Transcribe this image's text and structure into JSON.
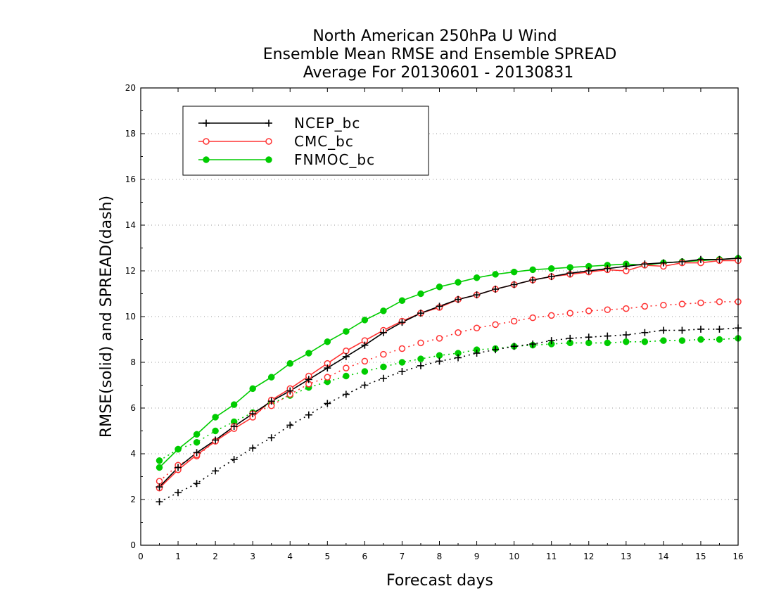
{
  "chart_data": {
    "type": "line",
    "title": [
      "North American 250hPa U Wind",
      "Ensemble Mean RMSE and Ensemble SPREAD",
      "Average For 20130601 - 20130831"
    ],
    "xlabel": "Forecast days",
    "ylabel": "RMSE(solid) and SPREAD(dash)",
    "xlim": [
      0,
      16
    ],
    "ylim": [
      0,
      20
    ],
    "x_ticks": [
      "0",
      "1",
      "2",
      "3",
      "4",
      "5",
      "6",
      "7",
      "8",
      "9",
      "10",
      "11",
      "12",
      "13",
      "14",
      "15",
      "16"
    ],
    "y_ticks": [
      "0",
      "2",
      "4",
      "6",
      "8",
      "10",
      "12",
      "14",
      "16",
      "18",
      "20"
    ],
    "grid": "horizontal dotted",
    "legend_position": "top-left",
    "x": [
      0.5,
      1,
      1.5,
      2,
      2.5,
      3,
      3.5,
      4,
      4.5,
      5,
      5.5,
      6,
      6.5,
      7,
      7.5,
      8,
      8.5,
      9,
      9.5,
      10,
      10.5,
      11,
      11.5,
      12,
      12.5,
      13,
      13.5,
      14,
      14.5,
      15,
      15.5,
      16
    ],
    "series": [
      {
        "name": "NCEP_bc",
        "color": "#000000",
        "marker": "plus",
        "style": "solid",
        "values": [
          2.55,
          3.4,
          4.05,
          4.6,
          5.2,
          5.75,
          6.3,
          6.75,
          7.25,
          7.75,
          8.25,
          8.75,
          9.3,
          9.75,
          10.15,
          10.45,
          10.75,
          10.95,
          11.2,
          11.4,
          11.6,
          11.75,
          11.9,
          12.0,
          12.1,
          12.2,
          12.3,
          12.35,
          12.4,
          12.5,
          12.5,
          12.55
        ]
      },
      {
        "name": "CMC_bc",
        "color": "#ff3333",
        "marker": "open-circle",
        "style": "solid",
        "values": [
          2.5,
          3.3,
          3.95,
          4.55,
          5.1,
          5.6,
          6.35,
          6.85,
          7.4,
          7.95,
          8.5,
          8.95,
          9.4,
          9.8,
          10.15,
          10.4,
          10.75,
          10.95,
          11.2,
          11.4,
          11.6,
          11.75,
          11.85,
          11.95,
          12.05,
          12.0,
          12.25,
          12.2,
          12.35,
          12.35,
          12.45,
          12.45
        ]
      },
      {
        "name": "FNMOC_bc",
        "color": "#00cc00",
        "marker": "filled-circle",
        "style": "solid",
        "values": [
          3.4,
          4.2,
          4.85,
          5.6,
          6.15,
          6.85,
          7.35,
          7.95,
          8.4,
          8.9,
          9.35,
          9.85,
          10.25,
          10.7,
          11.0,
          11.3,
          11.5,
          11.7,
          11.85,
          11.95,
          12.05,
          12.1,
          12.15,
          12.2,
          12.25,
          12.3,
          12.25,
          12.35,
          12.4,
          12.45,
          12.5,
          12.55
        ]
      },
      {
        "name": "",
        "color": "#000000",
        "marker": "plus",
        "style": "dotted",
        "values": [
          1.9,
          2.3,
          2.7,
          3.25,
          3.75,
          4.25,
          4.7,
          5.25,
          5.7,
          6.2,
          6.6,
          7.0,
          7.3,
          7.6,
          7.85,
          8.05,
          8.2,
          8.4,
          8.55,
          8.7,
          8.8,
          8.95,
          9.05,
          9.1,
          9.15,
          9.2,
          9.3,
          9.4,
          9.4,
          9.45,
          9.45,
          9.5
        ]
      },
      {
        "name": "",
        "color": "#ff3333",
        "marker": "open-circle",
        "style": "dotted",
        "values": [
          2.8,
          3.5,
          3.9,
          4.55,
          5.2,
          5.75,
          6.1,
          6.6,
          7.05,
          7.35,
          7.75,
          8.05,
          8.35,
          8.6,
          8.85,
          9.05,
          9.3,
          9.5,
          9.65,
          9.8,
          9.95,
          10.05,
          10.15,
          10.25,
          10.3,
          10.35,
          10.45,
          10.5,
          10.55,
          10.6,
          10.65,
          10.65
        ]
      },
      {
        "name": "",
        "color": "#00cc00",
        "marker": "filled-circle",
        "style": "dotted",
        "values": [
          3.7,
          4.2,
          4.5,
          5.0,
          5.4,
          5.8,
          6.2,
          6.55,
          6.9,
          7.15,
          7.4,
          7.6,
          7.8,
          8.0,
          8.15,
          8.3,
          8.4,
          8.55,
          8.6,
          8.7,
          8.75,
          8.8,
          8.85,
          8.85,
          8.85,
          8.9,
          8.9,
          8.95,
          8.95,
          9.0,
          9.0,
          9.05
        ]
      }
    ]
  }
}
